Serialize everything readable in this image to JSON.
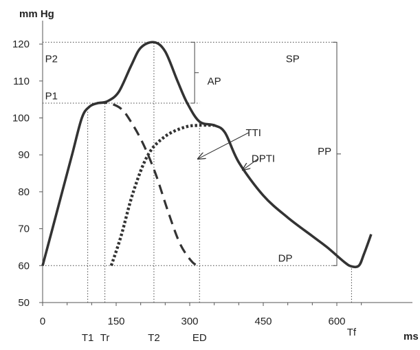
{
  "chart_data": {
    "type": "line",
    "ylabel": "mm Hg",
    "xlabel": "ms",
    "xlim": [
      0,
      700
    ],
    "ylim": [
      50,
      120
    ],
    "x_ticks": [
      {
        "value": 0,
        "label": "0"
      },
      {
        "value": 150,
        "label": "150"
      },
      {
        "value": 300,
        "label": "300"
      },
      {
        "value": 450,
        "label": "450"
      },
      {
        "value": 600,
        "label": "600"
      }
    ],
    "y_ticks": [
      {
        "value": 50,
        "label": "50"
      },
      {
        "value": 60,
        "label": "60"
      },
      {
        "value": 70,
        "label": "70"
      },
      {
        "value": 80,
        "label": "80"
      },
      {
        "value": 90,
        "label": "90"
      },
      {
        "value": 100,
        "label": "100"
      },
      {
        "value": 110,
        "label": "110"
      },
      {
        "value": 120,
        "label": "120"
      }
    ],
    "series": [
      {
        "style": "solid",
        "points": [
          [
            0,
            60
          ],
          [
            20,
            70
          ],
          [
            40,
            80
          ],
          [
            60,
            90
          ],
          [
            80,
            100
          ],
          [
            95,
            103
          ],
          [
            112,
            104
          ],
          [
            132,
            104.5
          ],
          [
            155,
            107
          ],
          [
            180,
            114
          ],
          [
            200,
            119
          ],
          [
            227,
            120.5
          ],
          [
            250,
            118
          ],
          [
            275,
            110
          ],
          [
            295,
            104
          ],
          [
            320,
            99
          ],
          [
            350,
            98
          ],
          [
            372,
            96
          ],
          [
            400,
            88
          ],
          [
            450,
            79
          ],
          [
            500,
            73
          ],
          [
            550,
            68
          ],
          [
            580,
            65
          ],
          [
            615,
            61
          ],
          [
            630,
            59.8
          ],
          [
            645,
            60
          ],
          [
            655,
            63
          ],
          [
            670,
            68.5
          ]
        ]
      },
      {
        "style": "dashed",
        "points": [
          [
            112,
            104
          ],
          [
            135,
            104
          ],
          [
            160,
            102.5
          ],
          [
            180,
            99
          ],
          [
            205,
            93
          ],
          [
            230,
            85
          ],
          [
            255,
            75
          ],
          [
            280,
            66
          ],
          [
            305,
            61
          ],
          [
            320,
            60
          ]
        ]
      },
      {
        "style": "dotted",
        "points": [
          [
            140,
            60
          ],
          [
            160,
            68
          ],
          [
            185,
            80
          ],
          [
            215,
            90
          ],
          [
            250,
            95
          ],
          [
            290,
            97.5
          ],
          [
            320,
            98
          ],
          [
            350,
            98
          ]
        ]
      }
    ],
    "reference_lines": [
      {
        "axis": "y",
        "value": 120.5,
        "from_x": 0,
        "to_x": 600
      },
      {
        "axis": "y",
        "value": 104,
        "from_x": 0,
        "to_x": 320
      },
      {
        "axis": "y",
        "value": 60,
        "from_x": 0,
        "to_x": 600
      },
      {
        "axis": "x",
        "value": 92,
        "from_y": 50,
        "to_y": 102
      },
      {
        "axis": "x",
        "value": 127,
        "from_y": 50,
        "to_y": 104
      },
      {
        "axis": "x",
        "value": 227,
        "from_y": 50,
        "to_y": 120.5
      },
      {
        "axis": "x",
        "value": 320,
        "from_y": 50,
        "to_y": 99
      },
      {
        "axis": "x",
        "value": 630,
        "from_y": 50,
        "to_y": 60
      }
    ],
    "annotations": [
      {
        "text": "P2",
        "x": 5,
        "y": 116
      },
      {
        "text": "P1",
        "x": 5,
        "y": 106
      },
      {
        "text": "SP",
        "x": 510,
        "y": 116
      },
      {
        "text": "AP",
        "x": 350,
        "y": 110
      },
      {
        "text": "TTI",
        "x": 430,
        "y": 96
      },
      {
        "text": "DPTI",
        "x": 450,
        "y": 89
      },
      {
        "text": "PP",
        "x": 575,
        "y": 91
      },
      {
        "text": "DP",
        "x": 495,
        "y": 62
      },
      {
        "text": "T1",
        "x": 92,
        "y": 40.5
      },
      {
        "text": "Tr",
        "x": 127,
        "y": 40.5
      },
      {
        "text": "T2",
        "x": 227,
        "y": 40.5
      },
      {
        "text": "ED",
        "x": 320,
        "y": 40.5
      },
      {
        "text": "Tf",
        "x": 630,
        "y": 42
      }
    ],
    "arrows": [
      {
        "from": [
          420,
          96
        ],
        "to": [
          318,
          89
        ]
      },
      {
        "from": [
          440,
          89
        ],
        "to": [
          409,
          86
        ]
      }
    ],
    "brackets": [
      {
        "x": 310,
        "y_from": 104,
        "y_to": 120.5,
        "label": "AP"
      },
      {
        "x": 600,
        "y_from": 60,
        "y_to": 120.5,
        "label": "PP"
      }
    ]
  }
}
